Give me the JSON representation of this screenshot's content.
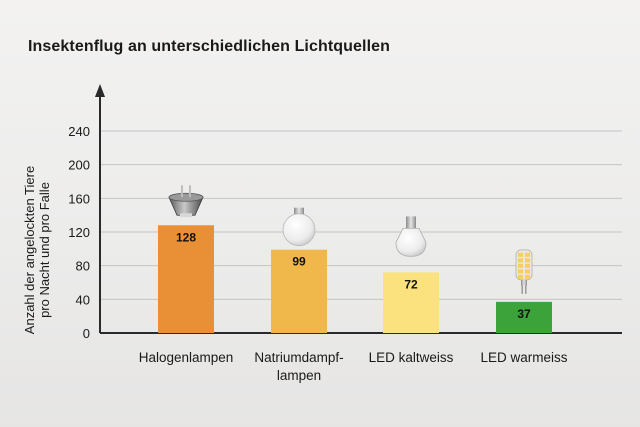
{
  "chart_data": {
    "type": "bar",
    "title": "Insektenflug an unterschiedlichen Lichtquellen",
    "ylabel": [
      "Anzahl der angelockten Tiere",
      "pro Nacht und pro Falle"
    ],
    "xlabel": "",
    "categories": [
      [
        "Halogenlampen"
      ],
      [
        "Natriumdampf-",
        "lampen"
      ],
      [
        "LED kaltweiss"
      ],
      [
        "LED warmeiss"
      ]
    ],
    "values": [
      128,
      99,
      72,
      37
    ],
    "value_labels": [
      "128",
      "99",
      "72",
      "37"
    ],
    "ylim": [
      0,
      240
    ],
    "yticks": [
      0,
      40,
      80,
      120,
      160,
      200,
      240
    ],
    "grid": true,
    "colors": [
      "#e98f35",
      "#f0b84a",
      "#fbe27f",
      "#3ca23a"
    ],
    "icons": [
      "halogen-spot-lamp-icon",
      "sodium-bulb-lamp-icon",
      "led-bulb-lamp-icon",
      "led-corn-lamp-icon"
    ]
  }
}
